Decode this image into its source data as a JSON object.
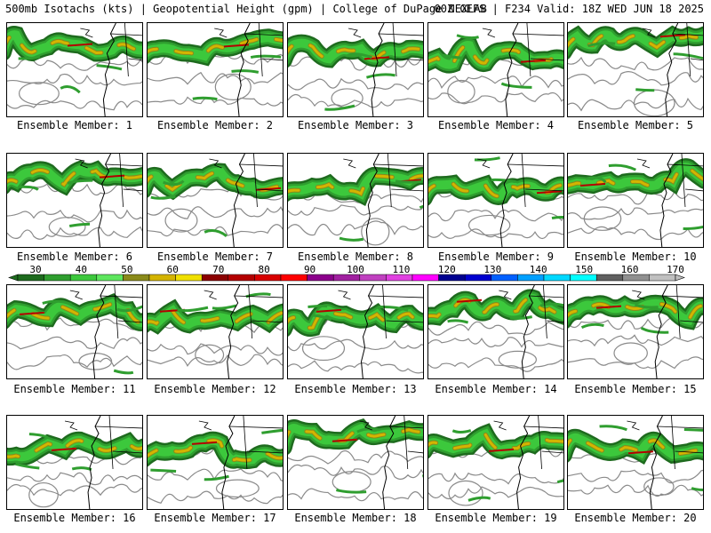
{
  "header": {
    "left": "500mb Isotachs (kts) | Geopotential Height (gpm) | College of DuPage NEXLAB",
    "right": "00Z GEFS | F234 Valid: 18Z WED JUN 18 2025"
  },
  "colorbar": {
    "labels": [
      "30",
      "40",
      "50",
      "60",
      "70",
      "80",
      "90",
      "100",
      "110",
      "120",
      "130",
      "140",
      "150",
      "160",
      "170"
    ],
    "colors": [
      "#1e6b1e",
      "#2f9e2f",
      "#3cc83c",
      "#5ee65e",
      "#8a8a1a",
      "#d4b400",
      "#f0e000",
      "#8b0000",
      "#b40000",
      "#d80000",
      "#ff0000",
      "#8b008b",
      "#a020a0",
      "#c040c0",
      "#e040e0",
      "#ff00ff",
      "#000090",
      "#0000d0",
      "#0060ff",
      "#00a0ff",
      "#00d8ff",
      "#00ffff",
      "#606060",
      "#909090",
      "#c0c0c0"
    ]
  },
  "members": [
    {
      "caption": "Ensemble Member: 1"
    },
    {
      "caption": "Ensemble Member: 2"
    },
    {
      "caption": "Ensemble Member: 3"
    },
    {
      "caption": "Ensemble Member: 4"
    },
    {
      "caption": "Ensemble Member: 5"
    },
    {
      "caption": "Ensemble Member: 6"
    },
    {
      "caption": "Ensemble Member: 7"
    },
    {
      "caption": "Ensemble Member: 8"
    },
    {
      "caption": "Ensemble Member: 9"
    },
    {
      "caption": "Ensemble Member: 10"
    },
    {
      "caption": "Ensemble Member: 11"
    },
    {
      "caption": "Ensemble Member: 12"
    },
    {
      "caption": "Ensemble Member: 13"
    },
    {
      "caption": "Ensemble Member: 14"
    },
    {
      "caption": "Ensemble Member: 15"
    },
    {
      "caption": "Ensemble Member: 16"
    },
    {
      "caption": "Ensemble Member: 17"
    },
    {
      "caption": "Ensemble Member: 18"
    },
    {
      "caption": "Ensemble Member: 19"
    },
    {
      "caption": "Ensemble Member: 20"
    }
  ]
}
